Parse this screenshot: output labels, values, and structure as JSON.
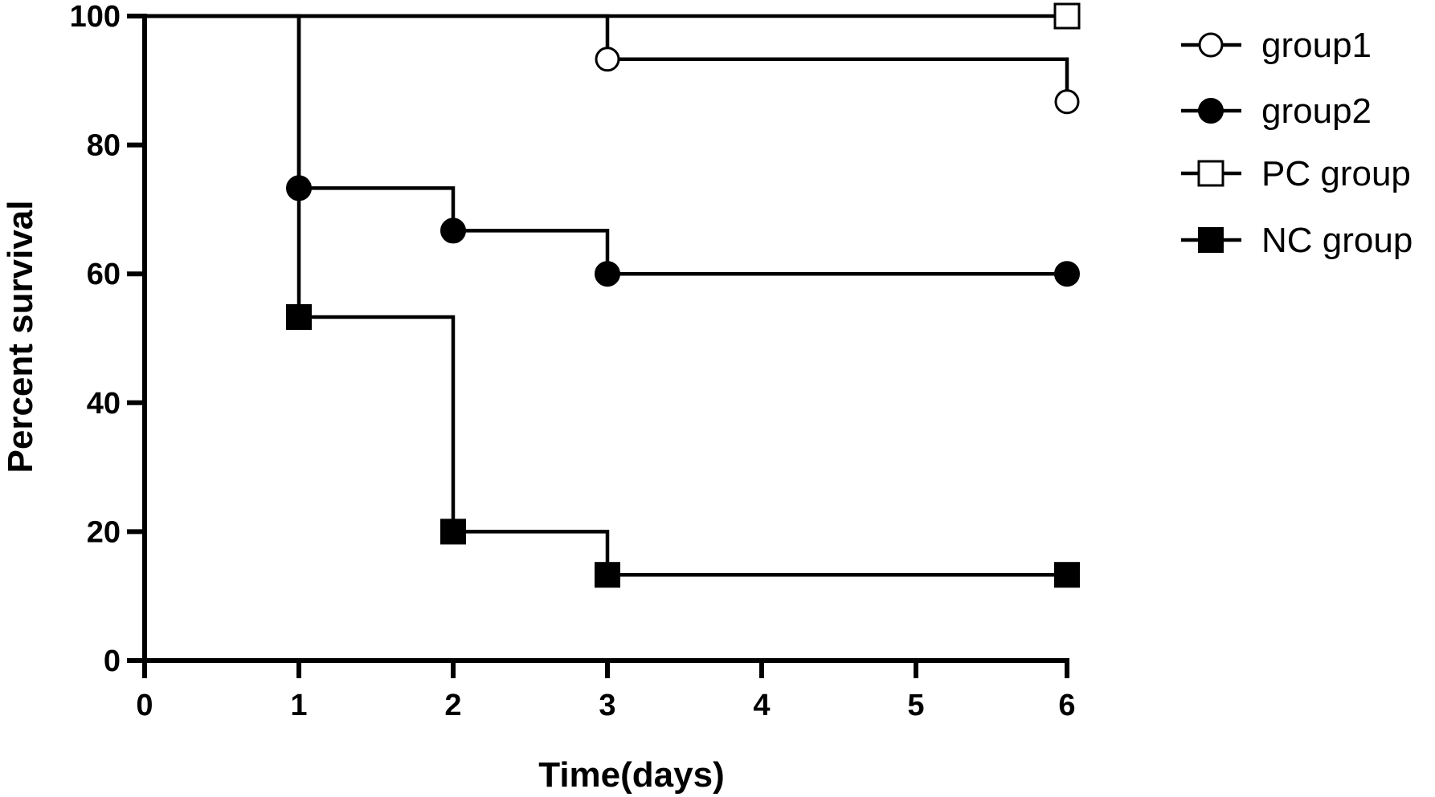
{
  "chart_data": {
    "type": "line",
    "step": true,
    "xlabel": "Time(days)",
    "ylabel": "Percent survival",
    "x_ticks": [
      0,
      1,
      2,
      3,
      4,
      5,
      6
    ],
    "y_ticks": [
      0,
      20,
      40,
      60,
      80,
      100
    ],
    "xlim": [
      0,
      6
    ],
    "ylim": [
      0,
      100
    ],
    "legend_position": "right",
    "grid": false,
    "series": [
      {
        "name": "group1",
        "marker": "open-circle",
        "color": "#000000",
        "points": [
          {
            "x": 0,
            "y": 100
          },
          {
            "x": 3,
            "y": 93.3
          },
          {
            "x": 6,
            "y": 86.7
          }
        ],
        "markers": [
          {
            "x": 3,
            "y": 93.3
          },
          {
            "x": 6,
            "y": 86.7
          }
        ]
      },
      {
        "name": "group2",
        "marker": "filled-circle",
        "color": "#000000",
        "points": [
          {
            "x": 0,
            "y": 100
          },
          {
            "x": 1,
            "y": 73.3
          },
          {
            "x": 2,
            "y": 66.7
          },
          {
            "x": 3,
            "y": 60
          },
          {
            "x": 6,
            "y": 60
          }
        ],
        "markers": [
          {
            "x": 1,
            "y": 73.3
          },
          {
            "x": 2,
            "y": 66.7
          },
          {
            "x": 3,
            "y": 60
          },
          {
            "x": 6,
            "y": 60
          }
        ]
      },
      {
        "name": "PC group",
        "marker": "open-square",
        "color": "#000000",
        "points": [
          {
            "x": 0,
            "y": 100
          },
          {
            "x": 6,
            "y": 100
          }
        ],
        "markers": [
          {
            "x": 6,
            "y": 100
          }
        ]
      },
      {
        "name": "NC group",
        "marker": "filled-square",
        "color": "#000000",
        "points": [
          {
            "x": 0,
            "y": 100
          },
          {
            "x": 1,
            "y": 53.3
          },
          {
            "x": 2,
            "y": 20
          },
          {
            "x": 3,
            "y": 13.3
          },
          {
            "x": 6,
            "y": 13.3
          }
        ],
        "markers": [
          {
            "x": 1,
            "y": 53.3
          },
          {
            "x": 2,
            "y": 20
          },
          {
            "x": 3,
            "y": 13.3
          },
          {
            "x": 6,
            "y": 13.3
          }
        ]
      }
    ]
  }
}
